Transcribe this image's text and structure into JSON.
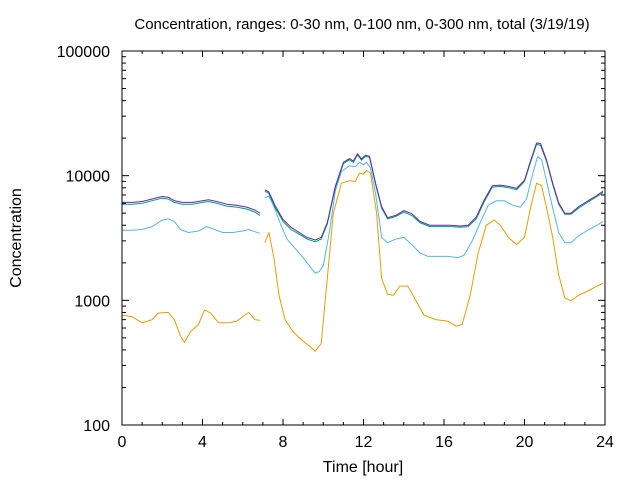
{
  "chart_data": {
    "type": "line",
    "title": "Concentration, ranges: 0-30 nm, 0-100 nm, 0-300 nm, total (3/19/19)",
    "xlabel": "Time [hour]",
    "ylabel": "Concentration",
    "xlim": [
      0,
      24
    ],
    "ylim": [
      100,
      100000
    ],
    "yscale": "log",
    "grid": false,
    "legend": "none",
    "x_ticks": [
      0,
      4,
      8,
      12,
      16,
      20,
      24
    ],
    "x_tick_labels": [
      "0",
      "4",
      "8",
      "12",
      "16",
      "20",
      "24"
    ],
    "y_ticks": [
      100,
      1000,
      10000,
      100000
    ],
    "y_tick_labels": [
      "100",
      "1000",
      "10000",
      "100000"
    ],
    "series": [
      {
        "color": "#e69f00",
        "segments": [
          [
            [
              0,
              760
            ],
            [
              0.5,
              740
            ],
            [
              1,
              660
            ],
            [
              1.5,
              700
            ],
            [
              1.8,
              790
            ],
            [
              2.3,
              800
            ],
            [
              2.6,
              700
            ],
            [
              2.9,
              520
            ],
            [
              3.1,
              460
            ],
            [
              3.4,
              560
            ],
            [
              3.8,
              640
            ],
            [
              4.1,
              840
            ],
            [
              4.4,
              790
            ],
            [
              4.8,
              660
            ],
            [
              5.3,
              660
            ],
            [
              5.7,
              680
            ],
            [
              6.0,
              740
            ],
            [
              6.3,
              800
            ],
            [
              6.6,
              700
            ],
            [
              6.85,
              690
            ]
          ],
          [
            [
              7.1,
              2900
            ],
            [
              7.3,
              3500
            ],
            [
              7.55,
              2200
            ],
            [
              7.8,
              1100
            ],
            [
              8.1,
              700
            ],
            [
              8.5,
              560
            ],
            [
              9,
              470
            ],
            [
              9.3,
              430
            ],
            [
              9.6,
              390
            ],
            [
              9.9,
              450
            ],
            [
              10.2,
              1500
            ],
            [
              10.5,
              5000
            ],
            [
              10.9,
              8700
            ],
            [
              11.3,
              9100
            ],
            [
              11.6,
              9000
            ],
            [
              11.8,
              10500
            ],
            [
              12.0,
              10300
            ],
            [
              12.15,
              11000
            ],
            [
              12.35,
              10500
            ],
            [
              12.65,
              5000
            ],
            [
              12.9,
              1500
            ],
            [
              13.2,
              1120
            ],
            [
              13.5,
              1100
            ],
            [
              13.8,
              1300
            ],
            [
              14.2,
              1300
            ],
            [
              14.6,
              1000
            ],
            [
              15.0,
              760
            ],
            [
              15.6,
              700
            ],
            [
              16.2,
              680
            ],
            [
              16.6,
              620
            ],
            [
              16.9,
              640
            ],
            [
              17.3,
              1100
            ],
            [
              17.7,
              2400
            ],
            [
              18.1,
              4000
            ],
            [
              18.5,
              4400
            ],
            [
              18.8,
              4000
            ],
            [
              19.2,
              3200
            ],
            [
              19.6,
              2800
            ],
            [
              20.0,
              3200
            ],
            [
              20.3,
              5500
            ],
            [
              20.6,
              8700
            ],
            [
              20.85,
              8300
            ],
            [
              21.1,
              5500
            ],
            [
              21.4,
              3200
            ],
            [
              21.7,
              1600
            ],
            [
              22.0,
              1050
            ],
            [
              22.3,
              990
            ],
            [
              22.7,
              1100
            ],
            [
              23.2,
              1200
            ],
            [
              23.6,
              1300
            ],
            [
              23.9,
              1370
            ]
          ]
        ]
      },
      {
        "color": "#56b4e9",
        "segments": [
          [
            [
              0,
              3650
            ],
            [
              0.5,
              3650
            ],
            [
              1,
              3700
            ],
            [
              1.5,
              3900
            ],
            [
              2.0,
              4400
            ],
            [
              2.3,
              4500
            ],
            [
              2.6,
              4300
            ],
            [
              2.9,
              3700
            ],
            [
              3.3,
              3500
            ],
            [
              3.8,
              3600
            ],
            [
              4.2,
              3900
            ],
            [
              4.6,
              3700
            ],
            [
              5.0,
              3500
            ],
            [
              5.5,
              3500
            ],
            [
              6.0,
              3600
            ],
            [
              6.3,
              3700
            ],
            [
              6.6,
              3550
            ],
            [
              6.85,
              3450
            ]
          ],
          [
            [
              7.1,
              6600
            ],
            [
              7.3,
              6900
            ],
            [
              7.6,
              5400
            ],
            [
              7.9,
              4000
            ],
            [
              8.2,
              3100
            ],
            [
              8.6,
              2600
            ],
            [
              9.0,
              2200
            ],
            [
              9.3,
              1900
            ],
            [
              9.6,
              1650
            ],
            [
              9.8,
              1700
            ],
            [
              10.0,
              1900
            ],
            [
              10.3,
              3500
            ],
            [
              10.6,
              7500
            ],
            [
              10.9,
              10800
            ],
            [
              11.3,
              12000
            ],
            [
              11.6,
              11800
            ],
            [
              11.8,
              12800
            ],
            [
              12.0,
              12200
            ],
            [
              12.15,
              12800
            ],
            [
              12.35,
              11500
            ],
            [
              12.6,
              7200
            ],
            [
              12.9,
              3200
            ],
            [
              13.2,
              2900
            ],
            [
              13.6,
              3100
            ],
            [
              14.0,
              3200
            ],
            [
              14.4,
              2800
            ],
            [
              14.8,
              2400
            ],
            [
              15.2,
              2250
            ],
            [
              15.7,
              2250
            ],
            [
              16.2,
              2250
            ],
            [
              16.7,
              2200
            ],
            [
              17.0,
              2300
            ],
            [
              17.4,
              3000
            ],
            [
              17.8,
              4200
            ],
            [
              18.2,
              5800
            ],
            [
              18.6,
              6300
            ],
            [
              19.0,
              6300
            ],
            [
              19.4,
              5800
            ],
            [
              19.8,
              5600
            ],
            [
              20.1,
              6500
            ],
            [
              20.4,
              10200
            ],
            [
              20.65,
              14200
            ],
            [
              20.85,
              13500
            ],
            [
              21.1,
              9000
            ],
            [
              21.4,
              5500
            ],
            [
              21.7,
              3500
            ],
            [
              22.0,
              2900
            ],
            [
              22.3,
              2900
            ],
            [
              22.7,
              3300
            ],
            [
              23.2,
              3700
            ],
            [
              23.6,
              4000
            ],
            [
              23.9,
              4300
            ]
          ]
        ]
      },
      {
        "color": "#009e73",
        "segments": [
          [
            [
              0,
              5900
            ],
            [
              0.5,
              5900
            ],
            [
              1.0,
              6000
            ],
            [
              1.5,
              6300
            ],
            [
              2.0,
              6600
            ],
            [
              2.3,
              6500
            ],
            [
              2.6,
              6100
            ],
            [
              3.0,
              5900
            ],
            [
              3.5,
              5900
            ],
            [
              4.0,
              6100
            ],
            [
              4.3,
              6200
            ],
            [
              4.7,
              6000
            ],
            [
              5.2,
              5700
            ],
            [
              5.7,
              5600
            ],
            [
              6.2,
              5400
            ],
            [
              6.6,
              5100
            ],
            [
              6.85,
              4800
            ]
          ],
          [
            [
              7.1,
              7500
            ],
            [
              7.3,
              7200
            ],
            [
              7.6,
              5600
            ],
            [
              8.0,
              4300
            ],
            [
              8.4,
              3700
            ],
            [
              8.8,
              3400
            ],
            [
              9.2,
              3100
            ],
            [
              9.6,
              2950
            ],
            [
              9.9,
              3100
            ],
            [
              10.2,
              4100
            ],
            [
              10.6,
              8000
            ],
            [
              11.0,
              12500
            ],
            [
              11.3,
              13400
            ],
            [
              11.5,
              12800
            ],
            [
              11.7,
              14700
            ],
            [
              11.9,
              13300
            ],
            [
              12.1,
              14300
            ],
            [
              12.3,
              14000
            ],
            [
              12.6,
              8500
            ],
            [
              12.9,
              5500
            ],
            [
              13.2,
              4500
            ],
            [
              13.6,
              4700
            ],
            [
              14.0,
              5100
            ],
            [
              14.4,
              4800
            ],
            [
              14.8,
              4200
            ],
            [
              15.3,
              3900
            ],
            [
              15.8,
              3900
            ],
            [
              16.3,
              3900
            ],
            [
              16.8,
              3850
            ],
            [
              17.2,
              3900
            ],
            [
              17.6,
              4500
            ],
            [
              18.0,
              6200
            ],
            [
              18.4,
              8100
            ],
            [
              18.8,
              8200
            ],
            [
              19.2,
              8000
            ],
            [
              19.6,
              7700
            ],
            [
              20.0,
              9000
            ],
            [
              20.3,
              12800
            ],
            [
              20.6,
              17800
            ],
            [
              20.8,
              17500
            ],
            [
              21.1,
              13000
            ],
            [
              21.4,
              8500
            ],
            [
              21.7,
              5900
            ],
            [
              22.0,
              4900
            ],
            [
              22.3,
              4900
            ],
            [
              22.7,
              5500
            ],
            [
              23.2,
              6200
            ],
            [
              23.6,
              6800
            ],
            [
              23.9,
              7300
            ]
          ]
        ]
      },
      {
        "color": "#5e2ca5",
        "segments": [
          [
            [
              0,
              6100
            ],
            [
              0.5,
              6100
            ],
            [
              1.0,
              6200
            ],
            [
              1.5,
              6500
            ],
            [
              2.0,
              6800
            ],
            [
              2.3,
              6700
            ],
            [
              2.6,
              6300
            ],
            [
              3.0,
              6100
            ],
            [
              3.5,
              6100
            ],
            [
              4.0,
              6300
            ],
            [
              4.3,
              6400
            ],
            [
              4.7,
              6200
            ],
            [
              5.2,
              5900
            ],
            [
              5.7,
              5800
            ],
            [
              6.2,
              5600
            ],
            [
              6.6,
              5300
            ],
            [
              6.85,
              5000
            ]
          ],
          [
            [
              7.1,
              7700
            ],
            [
              7.3,
              7400
            ],
            [
              7.6,
              5800
            ],
            [
              8.0,
              4450
            ],
            [
              8.4,
              3850
            ],
            [
              8.8,
              3500
            ],
            [
              9.2,
              3200
            ],
            [
              9.6,
              3050
            ],
            [
              9.9,
              3200
            ],
            [
              10.2,
              4200
            ],
            [
              10.6,
              8200
            ],
            [
              11.0,
              12800
            ],
            [
              11.3,
              13700
            ],
            [
              11.5,
              13100
            ],
            [
              11.7,
              15000
            ],
            [
              11.9,
              13600
            ],
            [
              12.1,
              14600
            ],
            [
              12.3,
              14300
            ],
            [
              12.6,
              8700
            ],
            [
              12.9,
              5650
            ],
            [
              13.2,
              4600
            ],
            [
              13.6,
              4800
            ],
            [
              14.0,
              5250
            ],
            [
              14.4,
              4950
            ],
            [
              14.8,
              4300
            ],
            [
              15.3,
              4000
            ],
            [
              15.8,
              4000
            ],
            [
              16.3,
              4000
            ],
            [
              16.8,
              3950
            ],
            [
              17.2,
              4000
            ],
            [
              17.6,
              4650
            ],
            [
              18.0,
              6400
            ],
            [
              18.4,
              8300
            ],
            [
              18.8,
              8400
            ],
            [
              19.2,
              8200
            ],
            [
              19.6,
              7900
            ],
            [
              20.0,
              9200
            ],
            [
              20.3,
              13100
            ],
            [
              20.6,
              18300
            ],
            [
              20.8,
              18000
            ],
            [
              21.1,
              13300
            ],
            [
              21.4,
              8700
            ],
            [
              21.7,
              6050
            ],
            [
              22.0,
              5000
            ],
            [
              22.3,
              5000
            ],
            [
              22.7,
              5650
            ],
            [
              23.2,
              6350
            ],
            [
              23.6,
              6950
            ],
            [
              23.9,
              7500
            ]
          ]
        ]
      }
    ]
  }
}
